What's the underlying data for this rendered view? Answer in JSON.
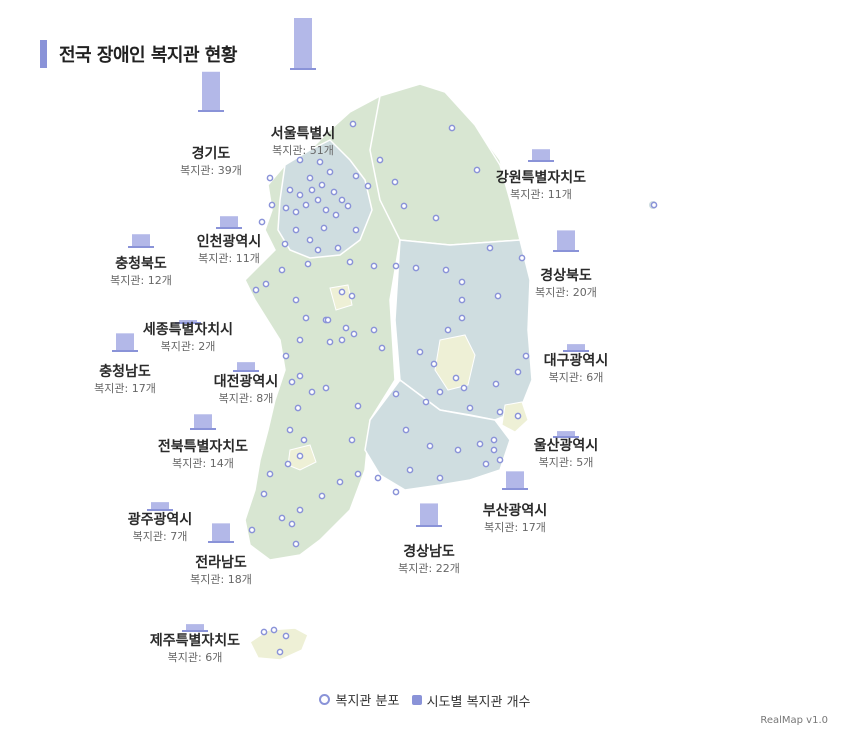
{
  "title": "전국 장애인 복지관 현황",
  "regions": [
    {
      "key": "seoul",
      "name": "서울특별시",
      "count_text": "복지관: 51개",
      "value": 51
    },
    {
      "key": "gyeonggi",
      "name": "경기도",
      "count_text": "복지관: 39개",
      "value": 39
    },
    {
      "key": "gangwon",
      "name": "강원특별자치도",
      "count_text": "복지관: 11개",
      "value": 11
    },
    {
      "key": "incheon",
      "name": "인천광역시",
      "count_text": "복지관: 11개",
      "value": 11
    },
    {
      "key": "chungbuk",
      "name": "충청북도",
      "count_text": "복지관: 12개",
      "value": 12
    },
    {
      "key": "gyeongbuk",
      "name": "경상북도",
      "count_text": "복지관: 20개",
      "value": 20
    },
    {
      "key": "sejong",
      "name": "세종특별자치시",
      "count_text": "복지관: 2개",
      "value": 2
    },
    {
      "key": "chungnam",
      "name": "충청남도",
      "count_text": "복지관: 17개",
      "value": 17
    },
    {
      "key": "daegu",
      "name": "대구광역시",
      "count_text": "복지관: 6개",
      "value": 6
    },
    {
      "key": "daejeon",
      "name": "대전광역시",
      "count_text": "복지관: 8개",
      "value": 8
    },
    {
      "key": "jeonbuk",
      "name": "전북특별자치도",
      "count_text": "복지관: 14개",
      "value": 14
    },
    {
      "key": "ulsan",
      "name": "울산광역시",
      "count_text": "복지관: 5개",
      "value": 5
    },
    {
      "key": "busan",
      "name": "부산광역시",
      "count_text": "복지관: 17개",
      "value": 17
    },
    {
      "key": "gwangju",
      "name": "광주광역시",
      "count_text": "복지관: 7개",
      "value": 7
    },
    {
      "key": "jeonnam",
      "name": "전라남도",
      "count_text": "복지관: 18개",
      "value": 18
    },
    {
      "key": "gyeongnam",
      "name": "경상남도",
      "count_text": "복지관: 22개",
      "value": 22
    },
    {
      "key": "jeju",
      "name": "제주특별자치도",
      "count_text": "복지관: 6개",
      "value": 6
    }
  ],
  "legend": {
    "points": "복지관 분포",
    "bars": "시도별 복지관 개수"
  },
  "brand": "RealMap v1.0",
  "colors": {
    "accent": "#8a93d8",
    "bar": "#b3b8e8",
    "land_green": "#d8e6d2",
    "land_blue": "#cfdde0",
    "land_yellow": "#eef0d6"
  }
}
